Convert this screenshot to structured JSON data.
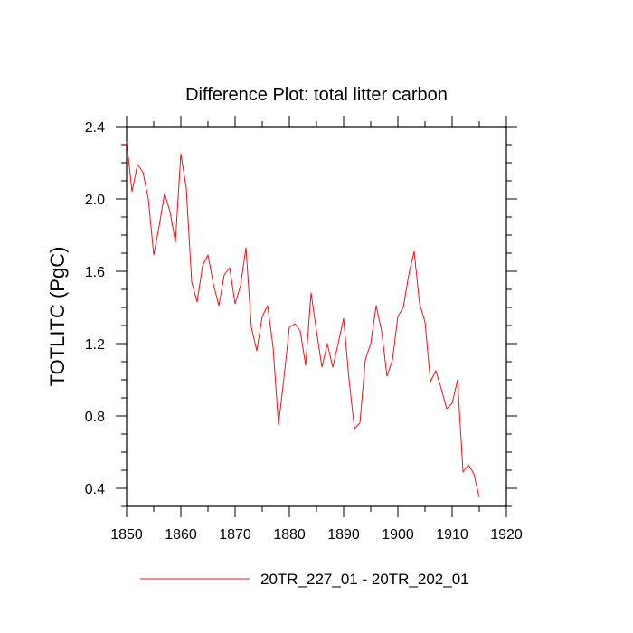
{
  "chart_data": {
    "type": "line",
    "title": "Difference Plot: total litter carbon",
    "xlabel": "",
    "ylabel": "TOTLITC  (PgC)",
    "xlim": [
      1850,
      1920
    ],
    "ylim": [
      0.3,
      2.4
    ],
    "xticks": [
      1850,
      1860,
      1870,
      1880,
      1890,
      1900,
      1910,
      1920
    ],
    "xtick_labels": [
      "1850",
      "1860",
      "1870",
      "1880",
      "1890",
      "1900",
      "1910",
      "1920"
    ],
    "yticks": [
      0.4,
      0.8,
      1.2,
      1.6,
      2.0,
      2.4
    ],
    "ytick_labels": [
      "0.4",
      "0.8",
      "1.2",
      "1.6",
      "2.0",
      "2.4"
    ],
    "grid": false,
    "legend_position": "bottom",
    "series": [
      {
        "name": "20TR_227_01 - 20TR_202_01",
        "color": "#e8141c",
        "x": [
          1850,
          1851,
          1852,
          1853,
          1854,
          1855,
          1856,
          1857,
          1858,
          1859,
          1860,
          1861,
          1862,
          1863,
          1864,
          1865,
          1866,
          1867,
          1868,
          1869,
          1870,
          1871,
          1872,
          1873,
          1874,
          1875,
          1876,
          1877,
          1878,
          1879,
          1880,
          1881,
          1882,
          1883,
          1884,
          1885,
          1886,
          1887,
          1888,
          1889,
          1890,
          1891,
          1892,
          1893,
          1894,
          1895,
          1896,
          1897,
          1898,
          1899,
          1900,
          1901,
          1902,
          1903,
          1904,
          1905,
          1906,
          1907,
          1908,
          1909,
          1910,
          1911,
          1912,
          1913,
          1914,
          1915
        ],
        "values": [
          2.32,
          2.04,
          2.19,
          2.15,
          2.0,
          1.69,
          1.85,
          2.03,
          1.93,
          1.76,
          2.25,
          2.06,
          1.54,
          1.43,
          1.63,
          1.69,
          1.53,
          1.41,
          1.58,
          1.62,
          1.42,
          1.52,
          1.73,
          1.29,
          1.16,
          1.35,
          1.41,
          1.18,
          0.75,
          1.01,
          1.29,
          1.31,
          1.27,
          1.08,
          1.48,
          1.27,
          1.07,
          1.2,
          1.07,
          1.2,
          1.34,
          1.0,
          0.73,
          0.76,
          1.11,
          1.2,
          1.41,
          1.27,
          1.02,
          1.11,
          1.35,
          1.4,
          1.58,
          1.71,
          1.42,
          1.32,
          0.99,
          1.05,
          0.95,
          0.84,
          0.87,
          1.0,
          0.49,
          0.53,
          0.48,
          0.35
        ]
      }
    ]
  }
}
